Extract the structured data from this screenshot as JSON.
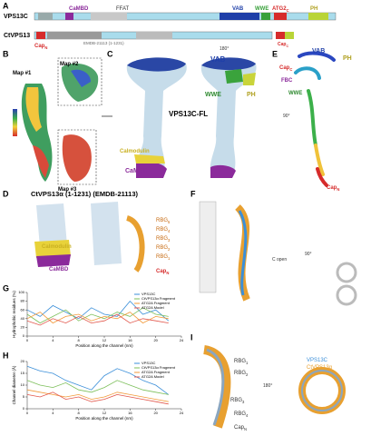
{
  "panel_labels": [
    "A",
    "B",
    "C",
    "D",
    "E",
    "F",
    "G",
    "H",
    "I"
  ],
  "labels": [
    {
      "text": "VPS13C"
    },
    {
      "text": "CtVPS13"
    },
    {
      "text": "CaMBD"
    },
    {
      "text": "FFAT"
    },
    {
      "text": "VAB"
    },
    {
      "text": "WWE"
    },
    {
      "text": "ATG2",
      "sub": "C"
    },
    {
      "text": "PH"
    },
    {
      "text": "Cap",
      "sub": "C"
    },
    {
      "text": "Cap",
      "sub": "N"
    },
    {
      "text": "EMDB-21113 (1-1231)"
    },
    {
      "text": "Map #1"
    },
    {
      "text": "Map #2"
    },
    {
      "text": "Map #3"
    },
    {
      "text": "VPS13C-FL"
    },
    {
      "text": "VAB"
    },
    {
      "text": "WWE"
    },
    {
      "text": "PH"
    },
    {
      "text": "Calmodulin"
    },
    {
      "text": "CaMBD"
    },
    {
      "text": "180°"
    },
    {
      "text": "VAB"
    },
    {
      "text": "PH"
    },
    {
      "text": "Cap",
      "sub": "C"
    },
    {
      "text": "FBC"
    },
    {
      "text": "WWE"
    },
    {
      "text": "90°"
    },
    {
      "text": "Cap",
      "sub": "N"
    },
    {
      "text": "CtVPS13α (1-1231) (EMDB-21113)"
    },
    {
      "text": "Calmodulin"
    },
    {
      "text": "CaMBD"
    },
    {
      "text": "RBG",
      "sub": "5"
    },
    {
      "text": "RBG",
      "sub": "4"
    },
    {
      "text": "RBG",
      "sub": "3"
    },
    {
      "text": "RBG",
      "sub": "2"
    },
    {
      "text": "RBG",
      "sub": "1"
    },
    {
      "text": "Cap",
      "sub": "N"
    },
    {
      "text": "C open"
    },
    {
      "text": "90°"
    },
    {
      "text": "RBG",
      "sub": "1"
    },
    {
      "text": "RBG",
      "sub": "2"
    },
    {
      "text": "RBG",
      "sub": "3"
    },
    {
      "text": "RBG",
      "sub": "4"
    },
    {
      "text": "Cap",
      "sub": "N"
    },
    {
      "text": "180°"
    },
    {
      "text": "VPS13C"
    },
    {
      "text": "CtVPS13α"
    }
  ],
  "panel_g": {
    "type": "line",
    "y_label": "Hydrophobic residues (%)",
    "x_label": "Position along the channel (nm)",
    "x": [
      0,
      2,
      4,
      6,
      8,
      10,
      12,
      14,
      16,
      18,
      20,
      22
    ],
    "xlim": [
      0,
      24
    ],
    "xticks": [
      0,
      4,
      8,
      12,
      16,
      20,
      24
    ],
    "ylim": [
      0,
      100
    ],
    "yticks": [
      0,
      20,
      40,
      60,
      80,
      100
    ],
    "series": [
      {
        "name": "VPS13C",
        "color": "#3b8fd9",
        "values": [
          60,
          45,
          70,
          55,
          40,
          65,
          50,
          45,
          80,
          50,
          60,
          35
        ]
      },
      {
        "name": "CtVPS13α Fragment",
        "color": "#7cbf5a",
        "values": [
          50,
          30,
          45,
          60,
          35,
          50,
          40,
          55,
          45,
          65,
          50,
          45
        ]
      },
      {
        "name": "ATG2A Fragment",
        "color": "#f29a3a",
        "values": [
          40,
          55,
          30,
          45,
          50,
          35,
          45,
          40,
          55,
          30,
          45,
          40
        ]
      },
      {
        "name": "ATG2A Model",
        "color": "#e2574c",
        "values": [
          35,
          25,
          40,
          30,
          45,
          30,
          35,
          50,
          30,
          40,
          35,
          30
        ]
      }
    ]
  },
  "panel_h": {
    "type": "line",
    "y_label": "Channel diameter (Å)",
    "x_label": "Position along the channel (nm)",
    "x": [
      0,
      2,
      4,
      6,
      8,
      10,
      12,
      14,
      16,
      18,
      20,
      22
    ],
    "xlim": [
      0,
      24
    ],
    "xticks": [
      0,
      4,
      8,
      12,
      16,
      20,
      24
    ],
    "ylim": [
      0,
      20
    ],
    "yticks": [
      0,
      5,
      10,
      15,
      20
    ],
    "series": [
      {
        "name": "VPS13C",
        "color": "#3b8fd9",
        "values": [
          18,
          16,
          15,
          12,
          10,
          8,
          14,
          17,
          15,
          12,
          10,
          6
        ]
      },
      {
        "name": "CtVPS13α Fragment",
        "color": "#7cbf5a",
        "values": [
          12,
          10,
          9,
          11,
          8,
          7,
          9,
          12,
          10,
          8,
          7,
          6
        ]
      },
      {
        "name": "ATG2A Fragment",
        "color": "#f29a3a",
        "values": [
          8,
          7,
          6,
          5,
          6,
          4,
          5,
          7,
          6,
          5,
          4,
          3
        ]
      },
      {
        "name": "ATG2A Model",
        "color": "#e2574c",
        "values": [
          6,
          5,
          7,
          4,
          5,
          3,
          4,
          6,
          5,
          4,
          3,
          2
        ]
      }
    ]
  }
}
